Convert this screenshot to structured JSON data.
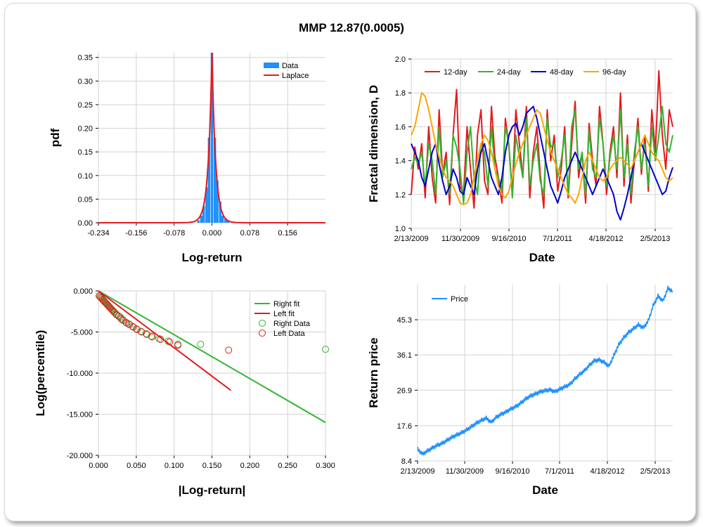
{
  "title": "MMP 12.87(0.0005)",
  "chart_data": [
    {
      "id": "pdf",
      "type": "bar",
      "xlabel": "Log-return",
      "ylabel": "pdf",
      "xlim": [
        -0.234,
        0.234
      ],
      "ylim": [
        0,
        0.36
      ],
      "xticks": [
        -0.234,
        -0.156,
        -0.078,
        0.0,
        0.078,
        0.156
      ],
      "xtick_labels": [
        "-0.234",
        "-0.156",
        "-0.078",
        "0.000",
        "0.078",
        "0.156"
      ],
      "yticks": [
        0,
        0.05,
        0.1,
        0.15,
        0.2,
        0.25,
        0.3,
        0.35
      ],
      "ytick_labels": [
        "0.00",
        "0.05",
        "0.10",
        "0.15",
        "0.20",
        "0.25",
        "0.30",
        "0.35"
      ],
      "legend": [
        "Data",
        "Laplace"
      ],
      "legend_position": "top-right",
      "colors": {
        "data": "#1e90ff",
        "laplace": "#e41a1c"
      },
      "bins": [
        {
          "x": -0.028,
          "y": 0.005
        },
        {
          "x": -0.022,
          "y": 0.015
        },
        {
          "x": -0.017,
          "y": 0.035
        },
        {
          "x": -0.011,
          "y": 0.075
        },
        {
          "x": -0.006,
          "y": 0.18
        },
        {
          "x": 0.0,
          "y": 0.36
        },
        {
          "x": 0.006,
          "y": 0.18
        },
        {
          "x": 0.011,
          "y": 0.09
        },
        {
          "x": 0.017,
          "y": 0.045
        },
        {
          "x": 0.022,
          "y": 0.015
        },
        {
          "x": 0.028,
          "y": 0.008
        },
        {
          "x": 0.033,
          "y": 0.004
        }
      ],
      "laplace": {
        "mu": 0.0,
        "peak": 0.36,
        "b": 0.0075
      }
    },
    {
      "id": "fractal",
      "type": "line",
      "xlabel": "Date",
      "ylabel": "Fractal dimension, D",
      "ylim": [
        1.0,
        2.0
      ],
      "yticks": [
        1.0,
        1.2,
        1.4,
        1.6,
        1.8,
        2.0
      ],
      "ytick_labels": [
        "1.0",
        "1.2",
        "1.4",
        "1.6",
        "1.8",
        "2.0"
      ],
      "xtick_labels": [
        "2/13/2009",
        "11/30/2009",
        "9/16/2010",
        "7/1/2011",
        "4/18/2012",
        "2/5/2013"
      ],
      "legend_position": "top",
      "series": [
        {
          "name": "12-day",
          "color": "#e41a1c",
          "values": [
            1.2,
            1.48,
            1.35,
            1.5,
            1.18,
            1.6,
            1.3,
            1.15,
            1.7,
            1.32,
            1.45,
            1.14,
            1.55,
            1.82,
            1.25,
            1.2,
            1.6,
            1.35,
            1.12,
            1.55,
            1.7,
            1.28,
            1.2,
            1.72,
            1.42,
            1.3,
            1.15,
            1.65,
            1.48,
            1.22,
            1.7,
            1.5,
            1.3,
            1.72,
            1.18,
            1.45,
            1.6,
            1.32,
            1.12,
            1.7,
            1.4,
            1.55,
            1.22,
            1.35,
            1.6,
            1.18,
            1.5,
            1.75,
            1.3,
            1.45,
            1.15,
            1.62,
            1.4,
            1.25,
            1.72,
            1.5,
            1.2,
            1.45,
            1.6,
            1.3,
            1.8,
            1.25,
            1.55,
            1.15,
            1.4,
            1.65,
            1.32,
            1.55,
            1.22,
            1.7,
            1.45,
            1.93,
            1.55,
            1.35,
            1.7,
            1.6
          ]
        },
        {
          "name": "24-day",
          "color": "#33b533",
          "values": [
            1.35,
            1.42,
            1.38,
            1.45,
            1.25,
            1.5,
            1.4,
            1.2,
            1.6,
            1.3,
            1.4,
            1.2,
            1.55,
            1.48,
            1.35,
            1.15,
            1.45,
            1.6,
            1.3,
            1.2,
            1.5,
            1.45,
            1.25,
            1.6,
            1.35,
            1.3,
            1.22,
            1.6,
            1.5,
            1.18,
            1.55,
            1.42,
            1.3,
            1.65,
            1.25,
            1.4,
            1.5,
            1.28,
            1.2,
            1.65,
            1.48,
            1.5,
            1.3,
            1.4,
            1.55,
            1.2,
            1.6,
            1.7,
            1.35,
            1.45,
            1.2,
            1.58,
            1.35,
            1.3,
            1.65,
            1.5,
            1.25,
            1.42,
            1.55,
            1.35,
            1.7,
            1.3,
            1.5,
            1.2,
            1.45,
            1.6,
            1.35,
            1.5,
            1.25,
            1.6,
            1.4,
            1.55,
            1.72,
            1.5,
            1.45,
            1.55
          ]
        },
        {
          "name": "48-day",
          "color": "#0000cc",
          "values": [
            1.5,
            1.45,
            1.4,
            1.3,
            1.25,
            1.35,
            1.45,
            1.5,
            1.38,
            1.28,
            1.2,
            1.25,
            1.35,
            1.3,
            1.22,
            1.2,
            1.3,
            1.25,
            1.2,
            1.35,
            1.45,
            1.5,
            1.4,
            1.3,
            1.25,
            1.2,
            1.3,
            1.45,
            1.55,
            1.6,
            1.62,
            1.55,
            1.6,
            1.68,
            1.7,
            1.72,
            1.65,
            1.55,
            1.45,
            1.35,
            1.25,
            1.2,
            1.15,
            1.22,
            1.3,
            1.35,
            1.4,
            1.45,
            1.4,
            1.35,
            1.3,
            1.25,
            1.2,
            1.25,
            1.3,
            1.35,
            1.3,
            1.25,
            1.2,
            1.1,
            1.05,
            1.12,
            1.2,
            1.3,
            1.4,
            1.45,
            1.5,
            1.45,
            1.4,
            1.35,
            1.3,
            1.25,
            1.2,
            1.22,
            1.3,
            1.36
          ]
        },
        {
          "name": "96-day",
          "color": "#ffa500",
          "values": [
            1.55,
            1.6,
            1.7,
            1.8,
            1.78,
            1.7,
            1.6,
            1.5,
            1.42,
            1.35,
            1.3,
            1.28,
            1.25,
            1.2,
            1.15,
            1.14,
            1.15,
            1.2,
            1.3,
            1.4,
            1.5,
            1.55,
            1.52,
            1.45,
            1.35,
            1.25,
            1.2,
            1.18,
            1.22,
            1.3,
            1.38,
            1.45,
            1.5,
            1.55,
            1.6,
            1.65,
            1.7,
            1.68,
            1.6,
            1.52,
            1.45,
            1.4,
            1.35,
            1.3,
            1.25,
            1.2,
            1.18,
            1.15,
            1.2,
            1.3,
            1.4,
            1.45,
            1.4,
            1.35,
            1.3,
            1.28,
            1.3,
            1.35,
            1.38,
            1.4,
            1.42,
            1.4,
            1.38,
            1.35,
            1.4,
            1.45,
            1.5,
            1.55,
            1.5,
            1.45,
            1.42,
            1.4,
            1.35,
            1.3,
            1.28,
            1.3
          ]
        }
      ]
    },
    {
      "id": "tail",
      "type": "scatter",
      "xlabel": "|Log-return|",
      "ylabel": "Log(percentile)",
      "xlim": [
        0,
        0.3
      ],
      "ylim": [
        -20,
        0
      ],
      "xticks": [
        0,
        0.05,
        0.1,
        0.15,
        0.2,
        0.25,
        0.3
      ],
      "xtick_labels": [
        "0.000",
        "0.050",
        "0.100",
        "0.150",
        "0.200",
        "0.250",
        "0.300"
      ],
      "yticks": [
        0,
        -5,
        -10,
        -15,
        -20
      ],
      "ytick_labels": [
        "0.000",
        "-5.000",
        "-10.000",
        "-15.000",
        "-20.000"
      ],
      "legend": [
        "Right fit",
        "Left fit",
        "Right Data",
        "Left Data"
      ],
      "legend_position": "top-right",
      "colors": {
        "right": "#33b533",
        "left": "#e41a1c"
      },
      "right_fit": [
        [
          0,
          0
        ],
        [
          0.3,
          -16.0
        ]
      ],
      "left_fit": [
        [
          0,
          0
        ],
        [
          0.175,
          -12.1
        ]
      ],
      "right_data": [
        [
          0.002,
          -0.7
        ],
        [
          0.004,
          -0.9
        ],
        [
          0.006,
          -1.1
        ],
        [
          0.008,
          -1.3
        ],
        [
          0.01,
          -1.5
        ],
        [
          0.012,
          -1.7
        ],
        [
          0.014,
          -1.9
        ],
        [
          0.016,
          -2.1
        ],
        [
          0.018,
          -2.3
        ],
        [
          0.02,
          -2.5
        ],
        [
          0.023,
          -2.8
        ],
        [
          0.026,
          -3.0
        ],
        [
          0.029,
          -3.2
        ],
        [
          0.032,
          -3.5
        ],
        [
          0.036,
          -3.8
        ],
        [
          0.04,
          -4.0
        ],
        [
          0.045,
          -4.3
        ],
        [
          0.05,
          -4.6
        ],
        [
          0.056,
          -4.9
        ],
        [
          0.063,
          -5.2
        ],
        [
          0.07,
          -5.5
        ],
        [
          0.08,
          -5.8
        ],
        [
          0.092,
          -6.1
        ],
        [
          0.105,
          -6.5
        ],
        [
          0.135,
          -6.5
        ],
        [
          0.3,
          -7.1
        ]
      ],
      "left_data": [
        [
          0.001,
          -0.6
        ],
        [
          0.003,
          -0.8
        ],
        [
          0.005,
          -1.0
        ],
        [
          0.007,
          -1.2
        ],
        [
          0.009,
          -1.4
        ],
        [
          0.011,
          -1.6
        ],
        [
          0.013,
          -1.8
        ],
        [
          0.015,
          -2.0
        ],
        [
          0.017,
          -2.2
        ],
        [
          0.019,
          -2.4
        ],
        [
          0.021,
          -2.6
        ],
        [
          0.024,
          -2.9
        ],
        [
          0.027,
          -3.1
        ],
        [
          0.03,
          -3.4
        ],
        [
          0.033,
          -3.6
        ],
        [
          0.037,
          -3.9
        ],
        [
          0.041,
          -4.1
        ],
        [
          0.046,
          -4.4
        ],
        [
          0.051,
          -4.7
        ],
        [
          0.057,
          -5.0
        ],
        [
          0.064,
          -5.3
        ],
        [
          0.071,
          -5.6
        ],
        [
          0.082,
          -5.9
        ],
        [
          0.094,
          -6.2
        ],
        [
          0.105,
          -6.6
        ],
        [
          0.172,
          -7.2
        ]
      ]
    },
    {
      "id": "price",
      "type": "line",
      "xlabel": "Date",
      "ylabel": "Return price",
      "ylim": [
        8.4,
        54.5
      ],
      "yticks": [
        8.4,
        17.6,
        26.9,
        36.1,
        45.3
      ],
      "ytick_labels": [
        "8.4",
        "17.6",
        "26.9",
        "36.1",
        "45.3"
      ],
      "xtick_labels": [
        "2/13/2009",
        "11/30/2009",
        "9/16/2010",
        "7/1/2011",
        "4/18/2012",
        "2/5/2013"
      ],
      "legend_position": "top-left",
      "series": [
        {
          "name": "Price",
          "color": "#1e90ff",
          "values": [
            11.5,
            10.2,
            11.0,
            11.8,
            12.5,
            13.0,
            13.8,
            14.6,
            15.2,
            15.8,
            16.5,
            17.4,
            18.3,
            19.0,
            19.6,
            18.5,
            19.8,
            20.6,
            21.2,
            22.0,
            22.6,
            23.5,
            24.6,
            25.4,
            25.9,
            26.5,
            26.8,
            27.0,
            26.5,
            27.2,
            27.8,
            28.4,
            29.8,
            31.0,
            32.0,
            33.4,
            34.6,
            34.8,
            34.2,
            33.2,
            36.0,
            38.8,
            40.6,
            42.0,
            43.0,
            44.0,
            43.2,
            45.0,
            49.0,
            51.5,
            50.2,
            53.5,
            52.8
          ]
        }
      ]
    }
  ]
}
